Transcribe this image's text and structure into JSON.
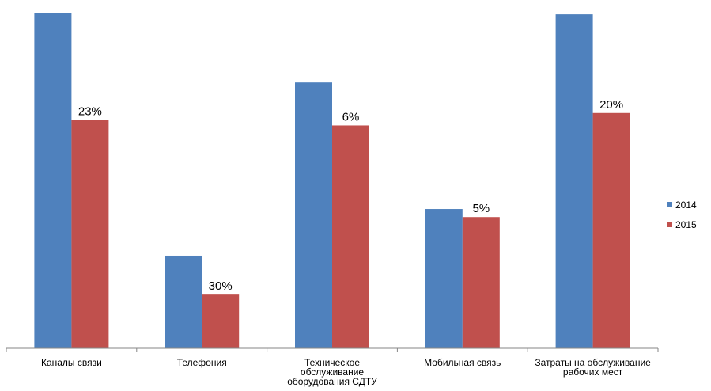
{
  "chart_data": {
    "type": "bar",
    "categories": [
      [
        "Каналы связи"
      ],
      [
        "Телефония"
      ],
      [
        "Техническое",
        "обслуживание",
        "оборудования СДТУ"
      ],
      [
        "Мобильная связь"
      ],
      [
        "Затраты на обслуживание",
        "рабочих мест"
      ]
    ],
    "series": [
      {
        "name": "2014",
        "color": "#4F81BD",
        "values": [
          100,
          27.6,
          79.2,
          41.5,
          99.5
        ]
      },
      {
        "name": "2015",
        "color": "#C0504D",
        "values": [
          68.0,
          16.0,
          66.4,
          39.1,
          70.1
        ],
        "data_labels": [
          "23%",
          "30%",
          "6%",
          "5%",
          "20%"
        ]
      }
    ],
    "ylim": [
      0,
      100
    ],
    "grid": false,
    "axis_ticks_visible": false,
    "legend_position": "right"
  }
}
